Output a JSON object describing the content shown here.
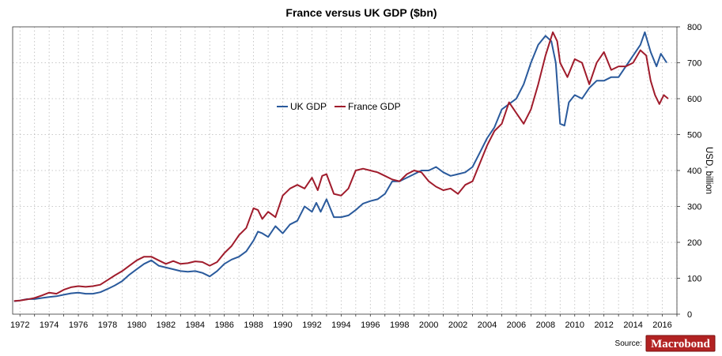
{
  "chart_data": {
    "type": "line",
    "title": "France versus UK GDP ($bn)",
    "xlabel": "",
    "ylabel": "USD, billion",
    "xlim": [
      1971.5,
      2017
    ],
    "ylim": [
      0,
      800
    ],
    "x_ticks": [
      "1972",
      "1974",
      "1976",
      "1978",
      "1980",
      "1982",
      "1984",
      "1986",
      "1988",
      "1990",
      "1992",
      "1994",
      "1996",
      "1998",
      "2000",
      "2002",
      "2004",
      "2006",
      "2008",
      "2010",
      "2012",
      "2014",
      "2016"
    ],
    "y_ticks": [
      "0",
      "100",
      "200",
      "300",
      "400",
      "500",
      "600",
      "700",
      "800"
    ],
    "y_axis_side": "right",
    "grid": true,
    "legend_placement": "center",
    "source_label": "Source:",
    "brand": "Macrobond",
    "series": [
      {
        "name": "UK GDP",
        "color": "#2a5a9c",
        "points": [
          [
            1971.6,
            36
          ],
          [
            1972,
            38
          ],
          [
            1972.5,
            42
          ],
          [
            1973,
            42
          ],
          [
            1973.5,
            45
          ],
          [
            1974,
            48
          ],
          [
            1974.5,
            50
          ],
          [
            1975,
            54
          ],
          [
            1975.5,
            58
          ],
          [
            1976,
            60
          ],
          [
            1976.5,
            57
          ],
          [
            1977,
            57
          ],
          [
            1977.5,
            61
          ],
          [
            1978,
            70
          ],
          [
            1978.5,
            80
          ],
          [
            1979,
            92
          ],
          [
            1979.5,
            110
          ],
          [
            1980,
            125
          ],
          [
            1980.5,
            140
          ],
          [
            1981,
            150
          ],
          [
            1981.5,
            135
          ],
          [
            1982,
            130
          ],
          [
            1982.5,
            125
          ],
          [
            1983,
            120
          ],
          [
            1983.5,
            118
          ],
          [
            1984,
            120
          ],
          [
            1984.5,
            115
          ],
          [
            1985,
            105
          ],
          [
            1985.5,
            120
          ],
          [
            1986,
            140
          ],
          [
            1986.5,
            152
          ],
          [
            1987,
            160
          ],
          [
            1987.5,
            175
          ],
          [
            1988,
            205
          ],
          [
            1988.3,
            230
          ],
          [
            1988.6,
            225
          ],
          [
            1989,
            215
          ],
          [
            1989.5,
            245
          ],
          [
            1990,
            225
          ],
          [
            1990.5,
            250
          ],
          [
            1991,
            260
          ],
          [
            1991.5,
            300
          ],
          [
            1992,
            285
          ],
          [
            1992.3,
            310
          ],
          [
            1992.6,
            285
          ],
          [
            1993,
            320
          ],
          [
            1993.5,
            270
          ],
          [
            1994,
            270
          ],
          [
            1994.5,
            275
          ],
          [
            1995,
            290
          ],
          [
            1995.5,
            308
          ],
          [
            1996,
            315
          ],
          [
            1996.5,
            320
          ],
          [
            1997,
            335
          ],
          [
            1997.5,
            370
          ],
          [
            1998,
            370
          ],
          [
            1998.5,
            380
          ],
          [
            1999,
            390
          ],
          [
            1999.5,
            400
          ],
          [
            2000,
            400
          ],
          [
            2000.5,
            410
          ],
          [
            2001,
            395
          ],
          [
            2001.5,
            385
          ],
          [
            2002,
            390
          ],
          [
            2002.5,
            395
          ],
          [
            2003,
            410
          ],
          [
            2003.5,
            450
          ],
          [
            2004,
            490
          ],
          [
            2004.5,
            520
          ],
          [
            2005,
            570
          ],
          [
            2005.5,
            585
          ],
          [
            2006,
            600
          ],
          [
            2006.5,
            640
          ],
          [
            2007,
            700
          ],
          [
            2007.5,
            750
          ],
          [
            2008,
            775
          ],
          [
            2008.4,
            760
          ],
          [
            2008.7,
            700
          ],
          [
            2009,
            530
          ],
          [
            2009.3,
            525
          ],
          [
            2009.6,
            590
          ],
          [
            2010,
            610
          ],
          [
            2010.5,
            600
          ],
          [
            2011,
            630
          ],
          [
            2011.5,
            650
          ],
          [
            2012,
            650
          ],
          [
            2012.5,
            660
          ],
          [
            2013,
            660
          ],
          [
            2013.5,
            690
          ],
          [
            2014,
            720
          ],
          [
            2014.5,
            750
          ],
          [
            2014.8,
            785
          ],
          [
            2015.2,
            730
          ],
          [
            2015.6,
            690
          ],
          [
            2015.9,
            725
          ],
          [
            2016.3,
            700
          ]
        ]
      },
      {
        "name": "France GDP",
        "color": "#a01c2c",
        "points": [
          [
            1971.6,
            37
          ],
          [
            1972,
            38
          ],
          [
            1972.5,
            41
          ],
          [
            1973,
            45
          ],
          [
            1973.5,
            52
          ],
          [
            1974,
            60
          ],
          [
            1974.5,
            57
          ],
          [
            1975,
            68
          ],
          [
            1975.5,
            75
          ],
          [
            1976,
            78
          ],
          [
            1976.5,
            76
          ],
          [
            1977,
            78
          ],
          [
            1977.5,
            82
          ],
          [
            1978,
            95
          ],
          [
            1978.5,
            108
          ],
          [
            1979,
            120
          ],
          [
            1979.5,
            135
          ],
          [
            1980,
            150
          ],
          [
            1980.5,
            160
          ],
          [
            1981,
            160
          ],
          [
            1981.5,
            150
          ],
          [
            1982,
            140
          ],
          [
            1982.5,
            148
          ],
          [
            1983,
            140
          ],
          [
            1983.5,
            142
          ],
          [
            1984,
            147
          ],
          [
            1984.5,
            145
          ],
          [
            1985,
            135
          ],
          [
            1985.5,
            145
          ],
          [
            1986,
            170
          ],
          [
            1986.5,
            190
          ],
          [
            1987,
            220
          ],
          [
            1987.5,
            240
          ],
          [
            1988,
            295
          ],
          [
            1988.3,
            290
          ],
          [
            1988.6,
            265
          ],
          [
            1989,
            285
          ],
          [
            1989.5,
            270
          ],
          [
            1990,
            330
          ],
          [
            1990.5,
            350
          ],
          [
            1991,
            360
          ],
          [
            1991.5,
            350
          ],
          [
            1992,
            380
          ],
          [
            1992.4,
            345
          ],
          [
            1992.7,
            385
          ],
          [
            1993,
            390
          ],
          [
            1993.5,
            335
          ],
          [
            1994,
            330
          ],
          [
            1994.5,
            350
          ],
          [
            1995,
            400
          ],
          [
            1995.5,
            405
          ],
          [
            1996,
            400
          ],
          [
            1996.5,
            395
          ],
          [
            1997,
            385
          ],
          [
            1997.5,
            375
          ],
          [
            1998,
            370
          ],
          [
            1998.5,
            390
          ],
          [
            1999,
            400
          ],
          [
            1999.5,
            395
          ],
          [
            2000,
            370
          ],
          [
            2000.5,
            355
          ],
          [
            2001,
            345
          ],
          [
            2001.5,
            350
          ],
          [
            2002,
            335
          ],
          [
            2002.5,
            360
          ],
          [
            2003,
            370
          ],
          [
            2003.5,
            420
          ],
          [
            2004,
            470
          ],
          [
            2004.5,
            510
          ],
          [
            2005,
            530
          ],
          [
            2005.5,
            590
          ],
          [
            2006,
            560
          ],
          [
            2006.5,
            530
          ],
          [
            2007,
            570
          ],
          [
            2007.5,
            640
          ],
          [
            2008,
            720
          ],
          [
            2008.5,
            785
          ],
          [
            2008.8,
            760
          ],
          [
            2009,
            700
          ],
          [
            2009.5,
            660
          ],
          [
            2010,
            710
          ],
          [
            2010.5,
            700
          ],
          [
            2011,
            640
          ],
          [
            2011.5,
            700
          ],
          [
            2012,
            730
          ],
          [
            2012.5,
            680
          ],
          [
            2013,
            690
          ],
          [
            2013.5,
            690
          ],
          [
            2014,
            700
          ],
          [
            2014.5,
            735
          ],
          [
            2014.9,
            720
          ],
          [
            2015.2,
            650
          ],
          [
            2015.5,
            610
          ],
          [
            2015.8,
            585
          ],
          [
            2016.1,
            610
          ],
          [
            2016.4,
            600
          ]
        ]
      }
    ]
  }
}
